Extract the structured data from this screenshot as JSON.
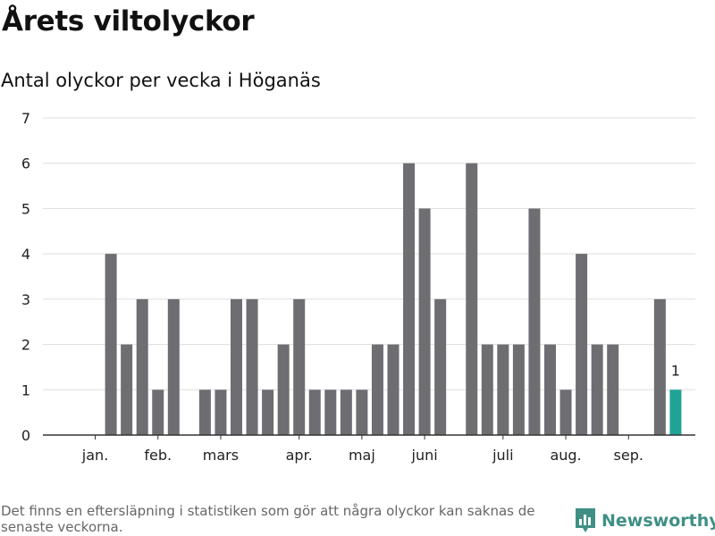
{
  "header": {
    "title": "Årets viltolyckor",
    "subtitle": "Antal olyckor per vecka i Höganäs"
  },
  "footer": {
    "note": "Det finns en eftersläpning i statistiken som gör att några olyckor kan saknas de senaste veckorna.",
    "brand": "Newsworthy",
    "brand_icon": "bar-chart-logo-icon"
  },
  "colors": {
    "bar": "#6e6d72",
    "highlight": "#1fa397",
    "brand": "#3f8f85",
    "grid": "#dddddd"
  },
  "chart_data": {
    "type": "bar",
    "title": "Antal olyckor per vecka i Höganäs",
    "xlabel": "",
    "ylabel": "",
    "ylim": [
      0,
      7
    ],
    "yticks": [
      0,
      1,
      2,
      3,
      4,
      5,
      6,
      7
    ],
    "grid": true,
    "month_labels": [
      {
        "label": "jan.",
        "week": 2
      },
      {
        "label": "feb.",
        "week": 6
      },
      {
        "label": "mars",
        "week": 10
      },
      {
        "label": "apr.",
        "week": 15
      },
      {
        "label": "maj",
        "week": 19
      },
      {
        "label": "juni",
        "week": 23
      },
      {
        "label": "juli",
        "week": 28
      },
      {
        "label": "aug.",
        "week": 32
      },
      {
        "label": "sep.",
        "week": 36
      }
    ],
    "weeks": [
      1,
      2,
      3,
      4,
      5,
      6,
      7,
      8,
      9,
      10,
      11,
      12,
      13,
      14,
      15,
      16,
      17,
      18,
      19,
      20,
      21,
      22,
      23,
      24,
      25,
      26,
      27,
      28,
      29,
      30,
      31,
      32,
      33,
      34,
      35,
      36,
      37,
      38,
      39,
      40
    ],
    "values": [
      0,
      0,
      4,
      2,
      3,
      1,
      3,
      0,
      1,
      1,
      3,
      3,
      1,
      2,
      3,
      1,
      1,
      1,
      1,
      2,
      2,
      6,
      5,
      3,
      0,
      6,
      2,
      2,
      2,
      5,
      2,
      1,
      4,
      2,
      2,
      0,
      0,
      3,
      1,
      0
    ],
    "highlight_week": 39,
    "annotations": [
      {
        "week": 39,
        "text": "1"
      }
    ]
  }
}
